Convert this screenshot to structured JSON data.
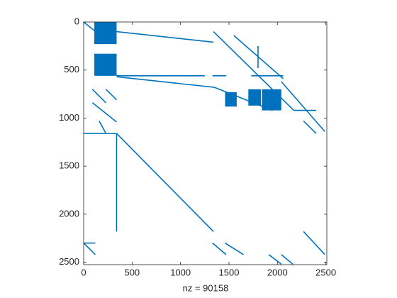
{
  "chart_data": {
    "type": "spy",
    "xlabel": "nz = 90158",
    "color": "#0072bd",
    "xlim": [
      0,
      2510
    ],
    "ylim": [
      0,
      2525
    ],
    "xticks": [
      0,
      500,
      1000,
      1500,
      2000,
      2500
    ],
    "yticks": [
      0,
      500,
      1000,
      1500,
      2000,
      2500
    ],
    "y_reversed": true,
    "segments": [
      [
        0,
        0,
        160,
        130
      ],
      [
        340,
        100,
        1340,
        210
      ],
      [
        1340,
        100,
        2170,
        920
      ],
      [
        1550,
        140,
        2060,
        590
      ],
      [
        2040,
        620,
        2490,
        1140
      ],
      [
        340,
        560,
        1250,
        560
      ],
      [
        1330,
        560,
        1470,
        560
      ],
      [
        1730,
        560,
        2060,
        560
      ],
      [
        340,
        570,
        1350,
        680
      ],
      [
        1350,
        680,
        1950,
        920
      ],
      [
        0,
        1160,
        340,
        1160
      ],
      [
        340,
        1160,
        1340,
        2180
      ],
      [
        340,
        1160,
        340,
        2180
      ],
      [
        0,
        2300,
        120,
        2420
      ],
      [
        1330,
        2300,
        1470,
        2420
      ],
      [
        1460,
        2300,
        1650,
        2420
      ],
      [
        1910,
        2420,
        2040,
        2520
      ],
      [
        2040,
        2420,
        2160,
        2520
      ],
      [
        2270,
        2180,
        2490,
        2420
      ],
      [
        0,
        2300,
        120,
        2300
      ],
      [
        90,
        700,
        230,
        840
      ],
      [
        230,
        700,
        340,
        810
      ],
      [
        90,
        840,
        340,
        1040
      ],
      [
        2170,
        920,
        2400,
        920
      ],
      [
        2270,
        1030,
        2400,
        1160
      ],
      [
        160,
        1030,
        230,
        1160
      ],
      [
        1800,
        250,
        1800,
        480
      ]
    ],
    "blocks": [
      [
        110,
        0,
        340,
        230
      ],
      [
        110,
        330,
        340,
        560
      ],
      [
        1460,
        730,
        1580,
        880
      ],
      [
        1840,
        700,
        2040,
        920
      ],
      [
        1700,
        700,
        1830,
        870
      ]
    ]
  }
}
